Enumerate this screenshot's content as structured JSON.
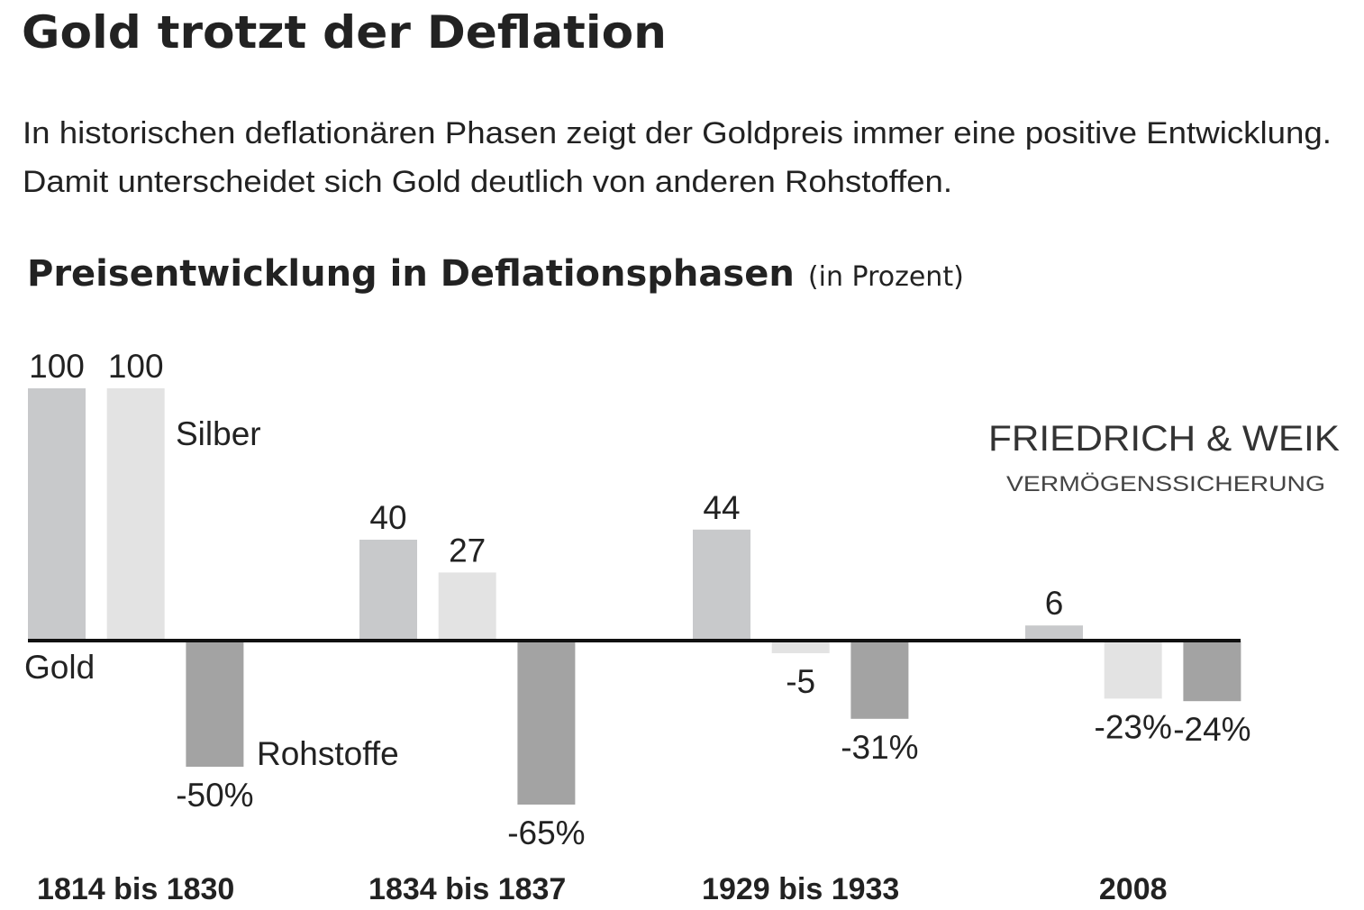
{
  "header": {
    "title": "Gold trotzt der Deflation",
    "subtitle_lines": [
      "In historischen deflationären Phasen zeigt der Goldpreis immer eine positive Entwicklung.",
      "Damit unterscheidet sich Gold deutlich von anderen Rohstoffen."
    ]
  },
  "logo": {
    "name": "FRIEDRICH & WEIK",
    "tagline": "VERMÖGENSSICHERUNG"
  },
  "chart_data": {
    "type": "bar",
    "title": "Preisentwicklung in Deflationsphasen",
    "unit_note": "(in Prozent)",
    "categories": [
      "1814 bis 1830",
      "1834 bis 1837",
      "1929 bis 1933",
      "2008"
    ],
    "series": [
      {
        "name": "Gold",
        "color": "#c8c9cb",
        "values": [
          100,
          40,
          44,
          6
        ]
      },
      {
        "name": "Silber",
        "color": "#e3e3e3",
        "values": [
          100,
          27,
          -5,
          -23
        ],
        "value_labels": [
          "100",
          "27",
          "-5",
          "-23%"
        ]
      },
      {
        "name": "Rohstoffe",
        "color": "#a3a3a3",
        "values": [
          -50,
          -65,
          -31,
          -24
        ],
        "value_labels": [
          "-50%",
          "-65%",
          "-31%",
          "-24%"
        ]
      }
    ]
  }
}
